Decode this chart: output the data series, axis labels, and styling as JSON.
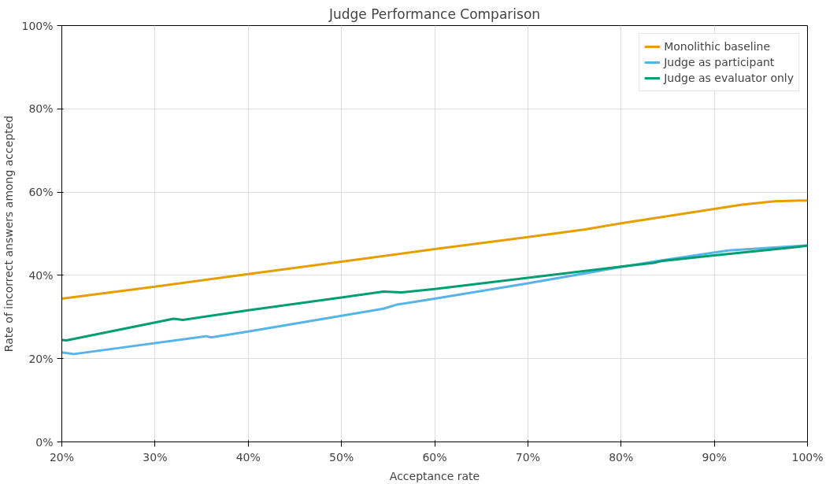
{
  "chart_data": {
    "type": "line",
    "title": "Judge Performance Comparison",
    "xlabel": "Acceptance rate",
    "ylabel": "Rate of incorrect answers among accepted",
    "xlim": [
      20,
      100
    ],
    "ylim": [
      0,
      100
    ],
    "xticks": [
      {
        "value": 20,
        "label": "20%"
      },
      {
        "value": 30,
        "label": "30%"
      },
      {
        "value": 40,
        "label": "40%"
      },
      {
        "value": 50,
        "label": "50%"
      },
      {
        "value": 60,
        "label": "60%"
      },
      {
        "value": 70,
        "label": "70%"
      },
      {
        "value": 80,
        "label": "80%"
      },
      {
        "value": 90,
        "label": "90%"
      },
      {
        "value": 100,
        "label": "100%"
      }
    ],
    "yticks": [
      {
        "value": 0,
        "label": "0%"
      },
      {
        "value": 20,
        "label": "20%"
      },
      {
        "value": 40,
        "label": "40%"
      },
      {
        "value": 60,
        "label": "60%"
      },
      {
        "value": 80,
        "label": "80%"
      },
      {
        "value": 100,
        "label": "100%"
      }
    ],
    "grid": true,
    "legend": "top right",
    "series": [
      {
        "name": "Monolithic baseline",
        "color": "#e69f00",
        "x": [
          20,
          30,
          40,
          50,
          60,
          70,
          76,
          80,
          93,
          96.5,
          100
        ],
        "values": [
          34.4,
          37.3,
          40.3,
          43.3,
          46.3,
          49.2,
          51,
          52.5,
          57,
          57.8,
          58
        ]
      },
      {
        "name": "Judge as participant",
        "color": "#56b4e9",
        "x": [
          20,
          21.3,
          35.5,
          36,
          40,
          50,
          54.5,
          56,
          60,
          70,
          80,
          84,
          91.5,
          100
        ],
        "values": [
          21.5,
          21.1,
          25.4,
          25.1,
          26.5,
          30.3,
          32,
          33,
          34.4,
          38.1,
          42,
          43.5,
          46,
          47.2
        ]
      },
      {
        "name": "Judge as evaluator only",
        "color": "#009e73",
        "x": [
          20,
          20.5,
          32,
          33,
          40,
          50,
          54.5,
          56.5,
          60,
          70,
          80,
          83.5,
          84.5,
          90,
          97.5,
          100
        ],
        "values": [
          24.5,
          24.4,
          29.6,
          29.3,
          31.6,
          34.7,
          36.1,
          35.9,
          36.7,
          39.4,
          42.1,
          43,
          43.5,
          44.8,
          46.5,
          47.1
        ]
      }
    ]
  }
}
